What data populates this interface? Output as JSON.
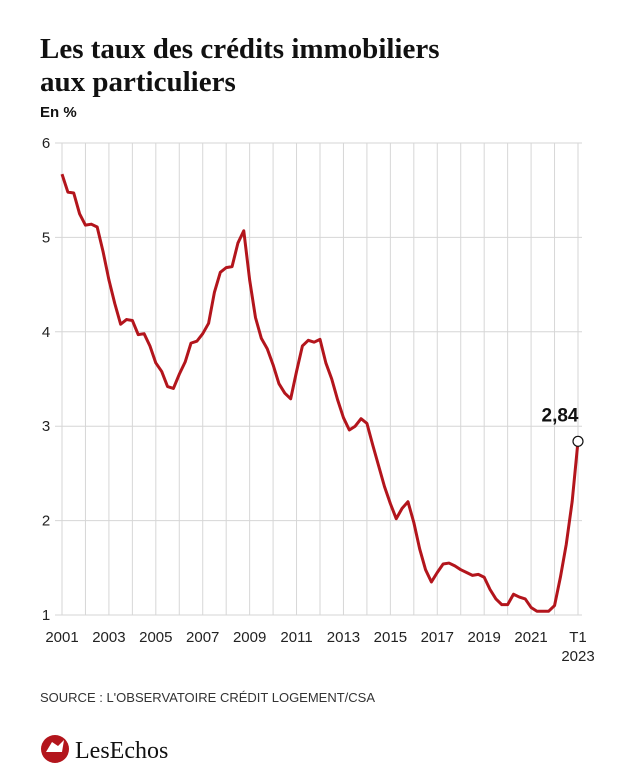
{
  "chart_data": {
    "type": "line",
    "title_lines": [
      "Les taux des crédits immobiliers",
      "aux particuliers"
    ],
    "y_label": "En %",
    "source": "SOURCE : L'OBSERVATOIRE CRÉDIT LOGEMENT/CSA",
    "brand": "LesEchos",
    "x": [
      2001,
      2001.25,
      2001.5,
      2001.75,
      2002,
      2002.25,
      2002.5,
      2002.75,
      2003,
      2003.25,
      2003.5,
      2003.75,
      2004,
      2004.25,
      2004.5,
      2004.75,
      2005,
      2005.25,
      2005.5,
      2005.75,
      2006,
      2006.25,
      2006.5,
      2006.75,
      2007,
      2007.25,
      2007.5,
      2007.75,
      2008,
      2008.25,
      2008.5,
      2008.75,
      2009,
      2009.25,
      2009.5,
      2009.75,
      2010,
      2010.25,
      2010.5,
      2010.75,
      2011,
      2011.25,
      2011.5,
      2011.75,
      2012,
      2012.25,
      2012.5,
      2012.75,
      2013,
      2013.25,
      2013.5,
      2013.75,
      2014,
      2014.25,
      2014.5,
      2014.75,
      2015,
      2015.25,
      2015.5,
      2015.75,
      2016,
      2016.25,
      2016.5,
      2016.75,
      2017,
      2017.25,
      2017.5,
      2017.75,
      2018,
      2018.25,
      2018.5,
      2018.75,
      2019,
      2019.25,
      2019.5,
      2019.75,
      2020,
      2020.25,
      2020.5,
      2020.75,
      2021,
      2021.25,
      2021.5,
      2021.75,
      2022,
      2022.25,
      2022.5,
      2022.75,
      2023
    ],
    "series": [
      {
        "name": "Taux",
        "color": "#b3151c",
        "values": [
          5.67,
          5.48,
          5.47,
          5.25,
          5.13,
          5.14,
          5.11,
          4.85,
          4.55,
          4.3,
          4.08,
          4.13,
          4.12,
          3.97,
          3.98,
          3.85,
          3.67,
          3.58,
          3.42,
          3.4,
          3.55,
          3.68,
          3.88,
          3.9,
          3.98,
          4.09,
          4.42,
          4.63,
          4.68,
          4.69,
          4.94,
          5.07,
          4.55,
          4.15,
          3.93,
          3.82,
          3.65,
          3.45,
          3.35,
          3.29,
          3.58,
          3.85,
          3.91,
          3.89,
          3.92,
          3.67,
          3.5,
          3.28,
          3.09,
          2.96,
          3.0,
          3.08,
          3.03,
          2.8,
          2.58,
          2.36,
          2.18,
          2.02,
          2.13,
          2.2,
          1.98,
          1.7,
          1.48,
          1.35,
          1.45,
          1.54,
          1.55,
          1.52,
          1.48,
          1.45,
          1.42,
          1.43,
          1.4,
          1.27,
          1.17,
          1.11,
          1.11,
          1.22,
          1.19,
          1.17,
          1.08,
          1.04,
          1.04,
          1.04,
          1.1,
          1.4,
          1.75,
          2.2,
          2.84
        ],
        "value_labels": [
          null,
          null,
          null,
          null,
          null,
          null,
          null,
          null,
          null,
          null,
          null,
          null,
          null,
          null,
          null,
          null,
          null,
          null,
          null,
          null,
          null,
          null,
          null,
          null,
          null,
          null,
          null,
          null,
          null,
          null,
          null,
          null,
          null,
          null,
          null,
          null,
          null,
          null,
          null,
          null,
          null,
          null,
          null,
          null,
          null,
          null,
          null,
          null,
          null,
          null,
          null,
          null,
          null,
          null,
          null,
          null,
          null,
          null,
          null,
          null,
          null,
          null,
          null,
          null,
          null,
          null,
          null,
          null,
          null,
          null,
          null,
          null,
          null,
          null,
          null,
          null,
          null,
          null,
          null,
          null,
          null,
          null,
          null,
          null,
          null,
          null,
          null,
          null,
          "2,84"
        ]
      }
    ],
    "xlim": [
      2001,
      2023
    ],
    "ylim": [
      1,
      6
    ],
    "yticks": [
      1,
      2,
      3,
      4,
      5,
      6
    ],
    "xticks": [
      2001,
      2003,
      2005,
      2007,
      2009,
      2011,
      2013,
      2015,
      2017,
      2019,
      2021,
      {
        "value": 2023,
        "label": "T1\n2023"
      }
    ],
    "xgrid": [
      2001,
      2002,
      2003,
      2004,
      2005,
      2006,
      2007,
      2008,
      2009,
      2010,
      2011,
      2012,
      2013,
      2014,
      2015,
      2016,
      2017,
      2018,
      2019,
      2020,
      2021,
      2022,
      2023
    ],
    "grid": true
  }
}
